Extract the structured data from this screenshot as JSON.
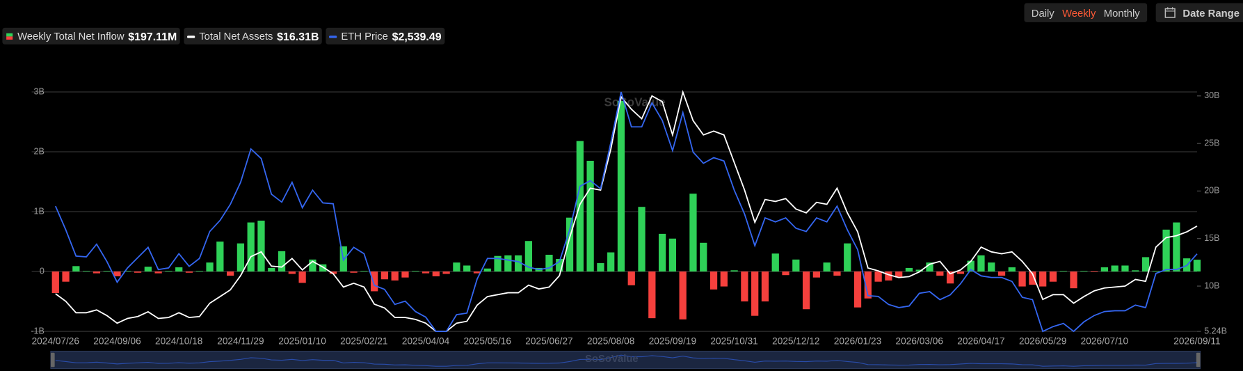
{
  "ui": {
    "range_options": [
      "Daily",
      "Weekly",
      "Monthly"
    ],
    "active_index": 1,
    "date_range": "Date Range",
    "watermark": "SoSoValue"
  },
  "chart_data": {
    "type": "bar-line",
    "categories": [
      "2024/07/26",
      null,
      null,
      null,
      null,
      null,
      "2024/09/06",
      null,
      null,
      null,
      null,
      null,
      "2024/10/18",
      null,
      null,
      null,
      null,
      null,
      "2024/11/29",
      null,
      null,
      null,
      null,
      null,
      "2025/01/10",
      null,
      null,
      null,
      null,
      null,
      "2025/02/21",
      null,
      null,
      null,
      null,
      null,
      "2025/04/04",
      null,
      null,
      null,
      null,
      null,
      "2025/05/16",
      null,
      null,
      null,
      null,
      null,
      "2025/06/27",
      null,
      null,
      null,
      null,
      null,
      "2025/08/08",
      null,
      null,
      null,
      null,
      null,
      "2025/09/19",
      null,
      null,
      null,
      null,
      null,
      "2025/10/31",
      null,
      null,
      null,
      null,
      null,
      "2025/12/12",
      null,
      null,
      null,
      null,
      null,
      "2026/01/23",
      null,
      null,
      null,
      null,
      null,
      "2026/03/06",
      null,
      null,
      null,
      null,
      null,
      "2026/04/17",
      null,
      null,
      null,
      null,
      null,
      "2026/05/29",
      null,
      null,
      null,
      null,
      null,
      "2026/07/10",
      null,
      null,
      null,
      null,
      null,
      null,
      null,
      null,
      "2026/09/11"
    ],
    "ylim": [
      -1,
      3
    ],
    "yticks": [
      {
        "value": -1,
        "label": "-1B"
      },
      0,
      {
        "value": 1,
        "label": "1B"
      },
      {
        "value": 2,
        "label": "2B"
      },
      {
        "value": 3,
        "label": "3B"
      }
    ],
    "y2lim": [
      5.24,
      30
    ],
    "y2ticks": [
      {
        "value": 5.24,
        "label": "5.24B"
      },
      {
        "value": 10,
        "label": "10B"
      },
      {
        "value": 15,
        "label": "15B"
      },
      {
        "value": 20,
        "label": "20B"
      },
      {
        "value": 25,
        "label": "25B"
      },
      {
        "value": 30,
        "label": "30B"
      }
    ],
    "y3lim": [
      1480,
      4750
    ],
    "grid": true,
    "series": [
      {
        "name": "Weekly Total Net Inflow",
        "latest_label": "$197.11M",
        "kind": "bar",
        "color": "#2fd158",
        "negative_color": "#f5403d",
        "values": [
          -0.36,
          -0.17,
          0.09,
          0.01,
          -0.03,
          0.01,
          -0.08,
          0.01,
          -0.02,
          0.08,
          -0.03,
          0.01,
          0.07,
          -0.02,
          0.01,
          0.15,
          0.5,
          -0.07,
          0.47,
          0.82,
          0.85,
          0.06,
          0.34,
          -0.04,
          -0.19,
          0.2,
          0.12,
          -0.04,
          0.42,
          -0.02,
          0.01,
          -0.33,
          -0.13,
          -0.15,
          -0.1,
          0.01,
          -0.03,
          -0.08,
          -0.04,
          0.15,
          0.1,
          -0.03,
          0.05,
          0.26,
          0.27,
          0.27,
          0.51,
          0.06,
          0.28,
          0.21,
          0.9,
          2.18,
          1.85,
          0.14,
          0.32,
          2.85,
          -0.23,
          1.08,
          -0.78,
          0.63,
          0.55,
          -0.8,
          1.3,
          0.48,
          -0.3,
          -0.25,
          0.02,
          -0.5,
          -0.74,
          -0.5,
          0.3,
          -0.06,
          0.2,
          -0.63,
          -0.1,
          0.15,
          -0.07,
          0.47,
          -0.6,
          -0.45,
          -0.17,
          -0.15,
          -0.1,
          0.06,
          0.03,
          0.15,
          -0.07,
          -0.2,
          -0.04,
          0.18,
          0.27,
          0.15,
          -0.07,
          0.07,
          -0.25,
          -0.22,
          -0.25,
          -0.17,
          0.01,
          -0.28,
          0.01,
          -0.01,
          0.07,
          0.1,
          0.1,
          0.02,
          0.24,
          0.01,
          0.7,
          0.82,
          0.22,
          0.19711
        ]
      },
      {
        "name": "Total Net Assets",
        "latest_label": "$16.31B",
        "kind": "line",
        "axis": "y2",
        "color": "#ffffff",
        "values": [
          9.2,
          8.4,
          7.2,
          7.2,
          7.5,
          6.9,
          6.1,
          6.6,
          6.8,
          7.3,
          6.6,
          6.7,
          7.2,
          6.7,
          6.8,
          8.2,
          8.9,
          9.6,
          11.1,
          13.1,
          13.6,
          12.1,
          12.0,
          12.9,
          11.7,
          12.6,
          12.0,
          11.3,
          9.9,
          10.3,
          9.9,
          8.1,
          7.7,
          6.7,
          6.7,
          6.5,
          6.1,
          5.24,
          5.24,
          6.1,
          6.3,
          8.0,
          8.9,
          9.1,
          9.3,
          9.3,
          10.1,
          9.7,
          9.9,
          11.1,
          15.1,
          18.6,
          20.3,
          20.1,
          24.4,
          29.9,
          28.6,
          27.6,
          30.0,
          29.4,
          25.9,
          30.4,
          27.4,
          25.9,
          26.3,
          25.9,
          23.0,
          20.1,
          16.7,
          19.1,
          18.9,
          19.2,
          18.1,
          17.7,
          18.8,
          18.6,
          20.3,
          17.7,
          15.7,
          11.9,
          11.6,
          11.2,
          10.9,
          11.0,
          11.5,
          12.3,
          12.6,
          11.3,
          11.7,
          12.6,
          14.1,
          13.6,
          13.4,
          13.6,
          12.6,
          11.3,
          8.6,
          9.1,
          9.1,
          8.2,
          8.9,
          9.5,
          9.8,
          9.9,
          10.0,
          10.7,
          10.5,
          14.1,
          15.1,
          15.3,
          15.7,
          16.31
        ]
      },
      {
        "name": "ETH Price",
        "latest_label": "$2,539.49",
        "kind": "line",
        "axis": "y3",
        "color": "#3466f0",
        "values": [
          3191,
          2866,
          2509,
          2498,
          2671,
          2433,
          2151,
          2346,
          2487,
          2628,
          2325,
          2346,
          2541,
          2368,
          2476,
          2844,
          2996,
          3213,
          3516,
          3971,
          3841,
          3354,
          3245,
          3516,
          3169,
          3408,
          3234,
          3223,
          2455,
          2628,
          2541,
          2108,
          2054,
          1848,
          1892,
          1751,
          1675,
          1480,
          1480,
          1707,
          1729,
          2195,
          2476,
          2476,
          2455,
          2433,
          2357,
          2325,
          2346,
          2433,
          2866,
          3462,
          3538,
          3429,
          4058,
          4750,
          4274,
          4274,
          4599,
          4361,
          3949,
          4469,
          3928,
          3776,
          3852,
          3808,
          3408,
          3083,
          2650,
          3029,
          2975,
          3029,
          2888,
          2844,
          3029,
          2975,
          3191,
          2866,
          2595,
          1967,
          1957,
          1848,
          1805,
          1827,
          2000,
          2022,
          1913,
          1978,
          2130,
          2325,
          2238,
          2216,
          2216,
          2162,
          1946,
          1913,
          1480,
          1545,
          1588,
          1480,
          1610,
          1697,
          1751,
          1762,
          1762,
          1838,
          1805,
          2271,
          2325,
          2325,
          2379,
          2539.49
        ]
      }
    ]
  }
}
